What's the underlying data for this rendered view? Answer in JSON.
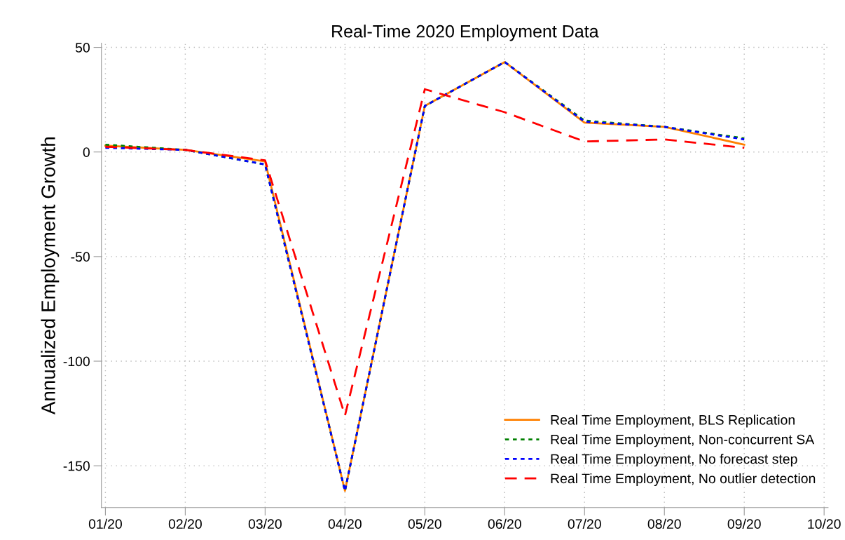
{
  "chart_data": {
    "type": "line",
    "title": "Real-Time 2020 Employment Data",
    "ylabel": "Annualized Employment Growth",
    "categories": [
      "01/20",
      "02/20",
      "03/20",
      "04/20",
      "05/20",
      "06/20",
      "07/20",
      "08/20",
      "09/20",
      "10/20"
    ],
    "series": [
      {
        "name": "Real Time Employment, BLS Replication",
        "color": "#ff8000",
        "line_style": "solid",
        "values": [
          3,
          1,
          -4.5,
          -162,
          22,
          43,
          14,
          12,
          3.5,
          null
        ]
      },
      {
        "name": "Real Time Employment, Non-concurrent SA",
        "color": "#008000",
        "line_style": "dotted",
        "values": [
          3.5,
          1,
          -6,
          -162,
          22,
          43,
          15,
          12,
          6.5,
          null
        ]
      },
      {
        "name": "Real Time Employment, No forecast step",
        "color": "#0000ff",
        "line_style": "dotted",
        "values": [
          2,
          1,
          -6,
          -162,
          22,
          43,
          14.5,
          12,
          6,
          null
        ]
      },
      {
        "name": "Real Time Employment, No outlier detection",
        "color": "#ff0000",
        "line_style": "dashed",
        "values": [
          2.5,
          1,
          -4,
          -126,
          30,
          19,
          5,
          6,
          2,
          null
        ]
      }
    ],
    "ylim": [
      -170,
      52
    ],
    "yticks": [
      -150,
      -100,
      -50,
      0,
      50
    ],
    "grid": true,
    "legend": "bottom right",
    "marker": "none"
  }
}
